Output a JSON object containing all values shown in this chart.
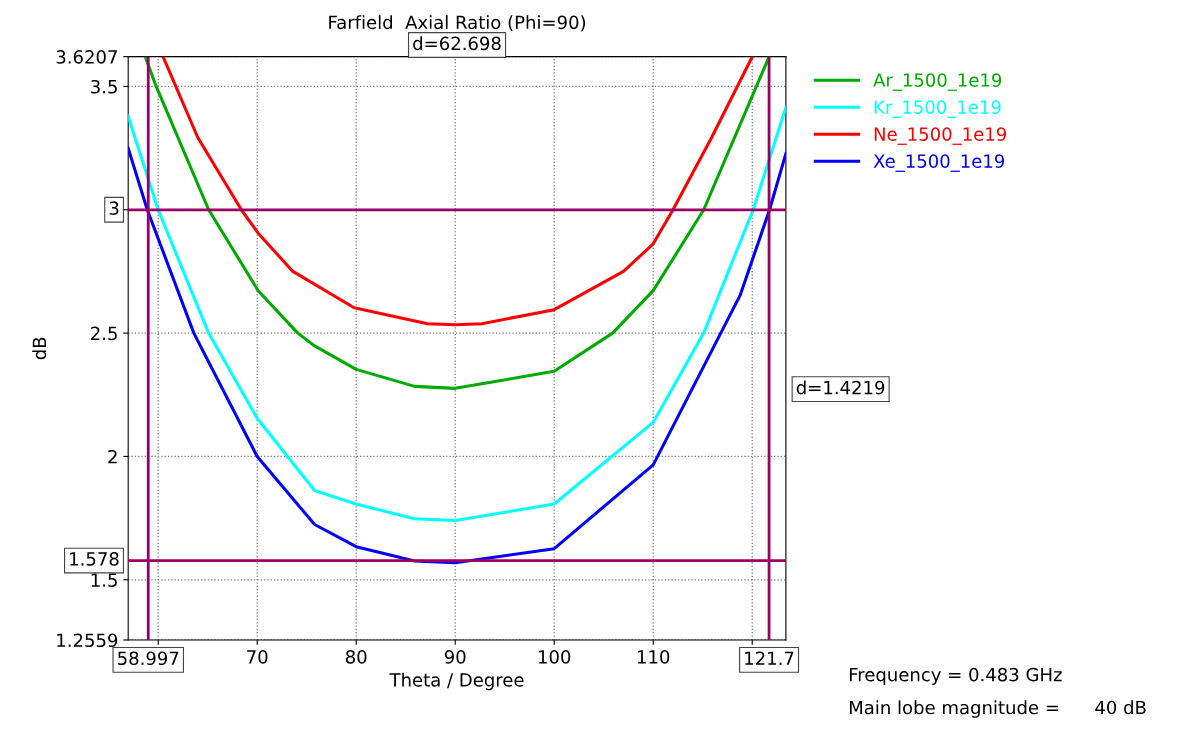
{
  "chart_data": {
    "type": "line",
    "title": "Farfield  Axial Ratio (Phi=90)",
    "xlabel": "Theta / Degree",
    "ylabel": "dB",
    "xlim": [
      56.97,
      123.4
    ],
    "ylim": [
      1.2559,
      3.6207
    ],
    "xticks": [
      {
        "value": 60,
        "label": null
      },
      70,
      80,
      90,
      100,
      110,
      {
        "value": 120,
        "label": null
      }
    ],
    "yticks": [
      1.2559,
      1.5,
      2,
      2.5,
      {
        "value": 3,
        "label": null
      },
      3.5,
      3.6207
    ],
    "grid": true,
    "legend": "top right",
    "line_style": "solid",
    "marker": "none",
    "series": [
      {
        "name": "Ar_1500_1e19",
        "color": "#00aa00",
        "x": [
          58.7,
          59.8,
          65.1,
          70.1,
          74.1,
          75.8,
          80,
          85.9,
          90,
          100,
          105.9,
          110,
          115.1,
          121.7
        ],
        "values": [
          3.62,
          3.5,
          3.0,
          2.672,
          2.5,
          2.448,
          2.353,
          2.284,
          2.276,
          2.345,
          2.5,
          2.672,
          3.0,
          3.62
        ]
      },
      {
        "name": "Kr_1500_1e19",
        "color": "#00ffff",
        "x": [
          56.97,
          60,
          65.1,
          70,
          75.8,
          80,
          85.9,
          90,
          100,
          110,
          115.1,
          120.1,
          123.4
        ],
        "values": [
          3.379,
          3.0,
          2.5,
          2.155,
          1.862,
          1.807,
          1.747,
          1.74,
          1.807,
          2.138,
          2.5,
          3.0,
          3.414
        ]
      },
      {
        "name": "Ne_1500_1e19",
        "color": "#ff0000",
        "x": [
          60.5,
          64,
          68.4,
          70.1,
          73.6,
          79.8,
          87.2,
          90,
          92.7,
          100,
          107,
          110,
          112,
          115.9,
          120
        ],
        "values": [
          3.62,
          3.293,
          3.0,
          2.905,
          2.75,
          2.603,
          2.538,
          2.534,
          2.538,
          2.595,
          2.75,
          2.862,
          3.0,
          3.293,
          3.62
        ]
      },
      {
        "name": "Xe_1500_1e19",
        "color": "#0000ff",
        "x": [
          56.97,
          58.9,
          63.6,
          70,
          75.8,
          80,
          85.9,
          90,
          100,
          110,
          118.8,
          121.75,
          123.4
        ],
        "values": [
          3.25,
          3.0,
          2.5,
          2.0,
          1.724,
          1.634,
          1.576,
          1.569,
          1.626,
          1.966,
          2.655,
          3.0,
          3.228
        ]
      }
    ],
    "ref_lines": [
      {
        "axis": "y",
        "value": 3,
        "label": "3",
        "color": "#990066"
      },
      {
        "axis": "y",
        "value": 1.578,
        "label": "1.578",
        "color": "#990066"
      },
      {
        "axis": "x",
        "value": 58.997,
        "label": "58.997",
        "color": "#990066"
      },
      {
        "axis": "x",
        "value": 121.7,
        "label": "121.7",
        "color": "#990066"
      }
    ],
    "annotations": [
      "d=62.698",
      "d=1.4219",
      "Frequency = 0.483 GHz",
      "Main lobe magnitude =      40 dB"
    ]
  }
}
